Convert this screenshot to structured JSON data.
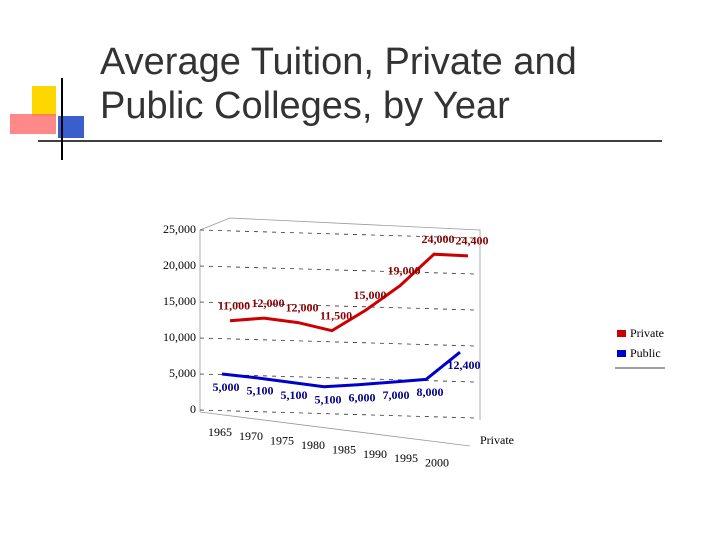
{
  "chart_data": {
    "type": "line",
    "title": "Average Tuition, Private and Public Colleges, by Year",
    "categories": [
      "1965",
      "1970",
      "1975",
      "1980",
      "1985",
      "1990",
      "1995",
      "2000"
    ],
    "depth_label": "Private",
    "series": [
      {
        "name": "Private",
        "color": "#cc0000",
        "values": [
          11000,
          12000,
          12000,
          11500,
          15000,
          19000,
          24000,
          24400
        ],
        "value_labels": [
          "11,000",
          "12,000",
          "12,000",
          "11,500",
          "15,000",
          "19,000",
          "24,000",
          "24,400"
        ]
      },
      {
        "name": "Public",
        "color": "#0000cc",
        "values": [
          5000,
          5100,
          5100,
          5100,
          6000,
          7000,
          8000,
          12400
        ],
        "value_labels": [
          "5,000",
          "5,100",
          "5,100",
          "5,100",
          "6,000",
          "7,000",
          "8,000",
          "12,400"
        ]
      }
    ],
    "ylim": [
      0,
      25000
    ],
    "yticks": [
      0,
      {
        "value": 5000,
        "label": "5,000"
      },
      {
        "value": 10000,
        "label": "10,000"
      },
      {
        "value": 15000,
        "label": "15,000"
      },
      {
        "value": 20000,
        "label": "20,000"
      },
      {
        "value": 25000,
        "label": "25,000"
      }
    ],
    "grid": true
  }
}
